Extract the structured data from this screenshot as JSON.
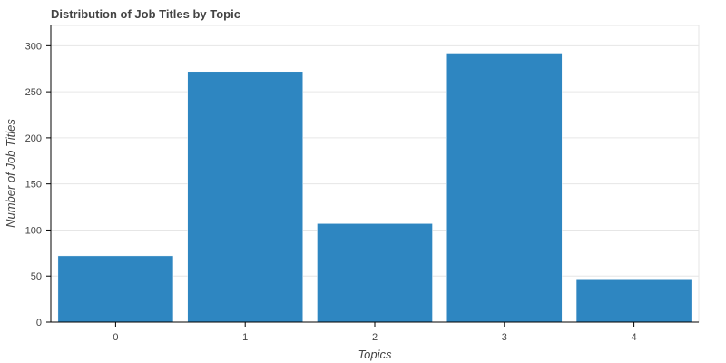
{
  "chart_data": {
    "type": "bar",
    "title": "Distribution of Job Titles by Topic",
    "xlabel": "Topics",
    "ylabel": "Number of Job Titles",
    "categories": [
      "0",
      "1",
      "2",
      "3",
      "4"
    ],
    "values": [
      72,
      272,
      107,
      292,
      47
    ],
    "ylim": [
      0,
      322
    ],
    "yticks": [
      0,
      50,
      100,
      150,
      200,
      250,
      300
    ],
    "grid": true,
    "bar_color": "#2e86c1"
  }
}
